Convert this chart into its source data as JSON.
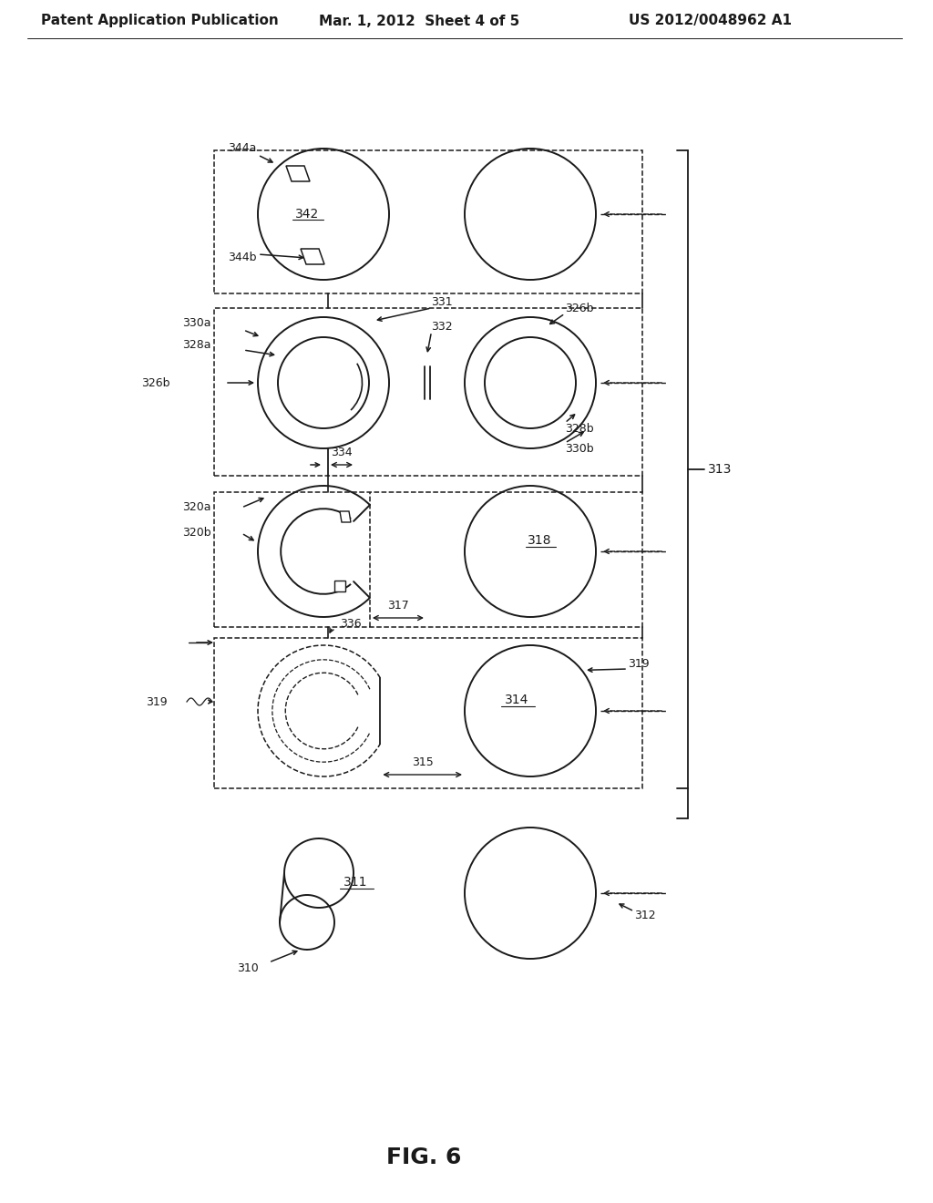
{
  "header_left": "Patent Application Publication",
  "header_mid": "Mar. 1, 2012  Sheet 4 of 5",
  "header_right": "US 2012/0048962 A1",
  "fig_label": "FIG. 6",
  "bg_color": "#ffffff",
  "line_color": "#1a1a1a",
  "text_color": "#1a1a1a",
  "header_fontsize": 11,
  "label_fontsize": 10,
  "fig_label_fontsize": 18
}
